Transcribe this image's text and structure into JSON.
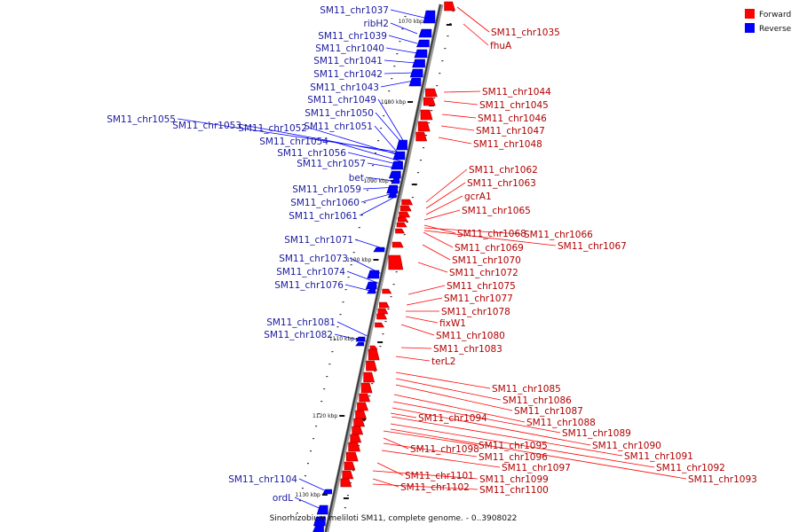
{
  "caption": "Sinorhizobium meliloti SM11, complete genome. - 0..3908022",
  "legend": [
    {
      "label": "Forward",
      "color": "#ff0000"
    },
    {
      "label": "Reverse",
      "color": "#0000ff"
    }
  ],
  "scale_ticks": [
    "1070 kbp",
    "1080 kbp",
    "1090 kbp",
    "1100 kbp",
    "1110 kbp",
    "1120 kbp",
    "1130 kbp"
  ],
  "reverse_genes": [
    "SM11_chr1037",
    "ribH2",
    "SM11_chr1039",
    "SM11_chr1040",
    "SM11_chr1041",
    "SM11_chr1042",
    "SM11_chr1043",
    "SM11_chr1049",
    "SM11_chr1050",
    "SM11_chr1055",
    "SM11_chr1053",
    "SM11_chr1052",
    "SM11_chr1051",
    "SM11_chr1054",
    "SM11_chr1056",
    "SM11_chr1057",
    "bet",
    "SM11_chr1059",
    "SM11_chr1060",
    "SM11_chr1061",
    "SM11_chr1071",
    "SM11_chr1073",
    "SM11_chr1074",
    "SM11_chr1076",
    "SM11_chr1081",
    "SM11_chr1082",
    "SM11_chr1104",
    "ordL"
  ],
  "forward_genes": [
    "SM11_chr1035",
    "fhuA",
    "SM11_chr1044",
    "SM11_chr1045",
    "SM11_chr1046",
    "SM11_chr1047",
    "SM11_chr1048",
    "SM11_chr1062",
    "SM11_chr1063",
    "gcrA1",
    "SM11_chr1065",
    "SM11_chr1068",
    "SM11_chr1066",
    "SM11_chr1067",
    "SM11_chr1069",
    "SM11_chr1070",
    "SM11_chr1072",
    "SM11_chr1075",
    "SM11_chr1077",
    "SM11_chr1078",
    "fixW1",
    "SM11_chr1080",
    "SM11_chr1083",
    "terL2",
    "SM11_chr1085",
    "SM11_chr1086",
    "SM11_chr1087",
    "SM11_chr1094",
    "SM11_chr1088",
    "SM11_chr1089",
    "SM11_chr1090",
    "SM11_chr1095",
    "SM11_chr1098",
    "SM11_chr1091",
    "SM11_chr1096",
    "SM11_chr1092",
    "SM11_chr1097",
    "SM11_chr1093",
    "SM11_chr1101",
    "SM11_chr1099",
    "SM11_chr1102",
    "SM11_chr1100"
  ]
}
